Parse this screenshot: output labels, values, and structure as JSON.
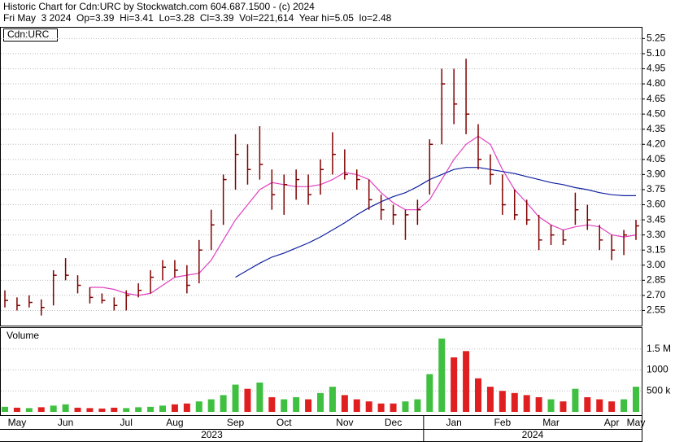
{
  "chart_data": {
    "type": "ohlc",
    "title": "Historic Chart for Cdn:URC by Stockwatch.com 604.687.1500 - (c) 2024",
    "subtitle": "Fri May  3 2024  Op=3.39  Hi=3.41  Lo=3.28  Cl=3.39  Vol=221,614  Year hi=5.05  lo=2.48",
    "symbol_label": "Cdn:URC",
    "volume_label": "Volume",
    "categories": [
      null,
      "May",
      null,
      null,
      null,
      "Jun",
      null,
      null,
      null,
      null,
      "Jul",
      null,
      null,
      null,
      "Aug",
      null,
      null,
      null,
      null,
      "Sep",
      null,
      null,
      null,
      "Oct",
      null,
      null,
      null,
      null,
      "Nov",
      null,
      null,
      null,
      "Dec",
      null,
      null,
      null,
      null,
      "Jan",
      null,
      null,
      null,
      "Feb",
      null,
      null,
      null,
      "Mar",
      null,
      null,
      null,
      null,
      "Apr",
      null,
      "May"
    ],
    "years": [
      "2023",
      "2024"
    ],
    "high": [
      2.75,
      2.68,
      2.7,
      2.66,
      2.95,
      3.07,
      2.9,
      2.78,
      2.72,
      2.68,
      2.75,
      2.82,
      2.95,
      3.05,
      3.05,
      3.0,
      3.25,
      3.55,
      3.9,
      4.3,
      4.2,
      4.38,
      3.95,
      3.9,
      3.95,
      3.9,
      4.05,
      4.32,
      4.15,
      3.95,
      3.85,
      3.7,
      3.6,
      3.55,
      3.65,
      4.25,
      4.95,
      4.95,
      5.05,
      4.4,
      4.1,
      3.9,
      3.75,
      3.65,
      3.5,
      3.4,
      3.35,
      3.72,
      3.6,
      3.4,
      3.3,
      3.35,
      3.45
    ],
    "low": [
      2.58,
      2.55,
      2.58,
      2.5,
      2.6,
      2.85,
      2.72,
      2.62,
      2.62,
      2.55,
      2.55,
      2.68,
      2.72,
      2.85,
      2.88,
      2.72,
      2.82,
      3.15,
      3.4,
      3.75,
      3.8,
      3.85,
      3.55,
      3.5,
      3.65,
      3.6,
      3.7,
      3.9,
      3.85,
      3.75,
      3.55,
      3.45,
      3.4,
      3.25,
      3.4,
      3.7,
      4.2,
      4.4,
      4.3,
      3.95,
      3.8,
      3.5,
      3.45,
      3.4,
      3.15,
      3.2,
      3.2,
      3.4,
      3.35,
      3.15,
      3.05,
      3.1,
      3.25
    ],
    "close": [
      2.65,
      2.6,
      2.63,
      2.58,
      2.9,
      2.9,
      2.8,
      2.68,
      2.65,
      2.6,
      2.7,
      2.75,
      2.88,
      2.98,
      2.95,
      2.8,
      3.15,
      3.4,
      3.85,
      4.1,
      3.95,
      4.0,
      3.7,
      3.8,
      3.85,
      3.7,
      3.95,
      4.1,
      3.9,
      3.85,
      3.65,
      3.55,
      3.5,
      3.5,
      3.55,
      4.2,
      4.8,
      4.6,
      4.5,
      4.05,
      3.9,
      3.6,
      3.5,
      3.45,
      3.25,
      3.3,
      3.25,
      3.55,
      3.45,
      3.25,
      3.15,
      3.3,
      3.39
    ],
    "bar_color": "#800000",
    "ma_series": [
      {
        "color": "#e040c0",
        "values": [
          null,
          null,
          null,
          null,
          null,
          null,
          null,
          2.78,
          2.78,
          2.76,
          2.72,
          2.7,
          2.72,
          2.8,
          2.88,
          2.9,
          2.92,
          3.05,
          3.25,
          3.45,
          3.6,
          3.75,
          3.82,
          3.8,
          3.78,
          3.78,
          3.8,
          3.85,
          3.92,
          3.9,
          3.85,
          3.72,
          3.62,
          3.55,
          3.55,
          3.65,
          3.85,
          4.05,
          4.2,
          4.28,
          4.2,
          3.95,
          3.75,
          3.62,
          3.48,
          3.4,
          3.35,
          3.38,
          3.4,
          3.38,
          3.3,
          3.28,
          3.3
        ]
      },
      {
        "color": "#1020a0",
        "values": [
          null,
          null,
          null,
          null,
          null,
          null,
          null,
          null,
          null,
          null,
          null,
          null,
          null,
          null,
          null,
          null,
          null,
          null,
          null,
          2.88,
          2.95,
          3.02,
          3.08,
          3.12,
          3.17,
          3.22,
          3.28,
          3.35,
          3.42,
          3.5,
          3.57,
          3.63,
          3.68,
          3.72,
          3.78,
          3.85,
          3.9,
          3.95,
          3.97,
          3.97,
          3.95,
          3.93,
          3.91,
          3.88,
          3.85,
          3.82,
          3.8,
          3.77,
          3.75,
          3.72,
          3.7,
          3.69,
          3.69
        ]
      }
    ],
    "ylim": [
      2.4,
      5.35
    ],
    "yticks": [
      5.25,
      {
        "value": 5.1,
        "label": "5.10"
      },
      4.95,
      {
        "value": 4.8,
        "label": "4.80"
      },
      4.65,
      {
        "value": 4.5,
        "label": "4.50"
      },
      4.35,
      {
        "value": 4.2,
        "label": "4.20"
      },
      4.05,
      {
        "value": 3.9,
        "label": "3.90"
      },
      3.75,
      {
        "value": 3.6,
        "label": "3.60"
      },
      3.45,
      {
        "value": 3.3,
        "label": "3.30"
      },
      3.15,
      {
        "value": 3,
        "label": "3.00"
      },
      2.85,
      {
        "value": 2.7,
        "label": "2.70"
      },
      2.55
    ],
    "volume": [
      120000,
      100000,
      90000,
      110000,
      150000,
      180000,
      100000,
      90000,
      80000,
      100000,
      90000,
      110000,
      120000,
      150000,
      180000,
      200000,
      250000,
      300000,
      400000,
      650000,
      550000,
      700000,
      350000,
      300000,
      350000,
      300000,
      450000,
      600000,
      400000,
      300000,
      250000,
      200000,
      200000,
      250000,
      300000,
      900000,
      1750000,
      1300000,
      1450000,
      800000,
      600000,
      500000,
      450000,
      400000,
      350000,
      300000,
      250000,
      550000,
      350000,
      300000,
      250000,
      300000,
      600000
    ],
    "volume_colors": [
      "#40c040",
      "#e02020"
    ],
    "vlim": [
      0,
      2000000
    ],
    "vticks": [
      {
        "value": 500000,
        "label": "500 k"
      },
      {
        "value": 1000000,
        "label": "1000"
      },
      {
        "value": 1500000,
        "label": "1.5 M"
      }
    ],
    "grid": true
  }
}
